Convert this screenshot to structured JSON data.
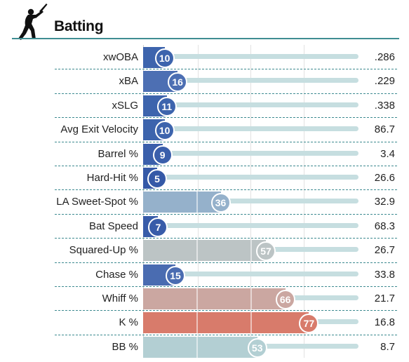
{
  "header": {
    "title": "Batting",
    "icon": "baseball-batter-icon"
  },
  "colors": {
    "rule": "#3f8d92",
    "track": "#c6dee0"
  },
  "rows": [
    {
      "label": "xwOBA",
      "percentile": 10,
      "value": ".286",
      "color": "#3d64ad"
    },
    {
      "label": "xBA",
      "percentile": 16,
      "value": ".229",
      "color": "#4d6fb3"
    },
    {
      "label": "xSLG",
      "percentile": 11,
      "value": ".338",
      "color": "#3d64ad"
    },
    {
      "label": "Avg Exit Velocity",
      "percentile": 10,
      "value": "86.7",
      "color": "#3d64ad"
    },
    {
      "label": "Barrel %",
      "percentile": 9,
      "value": "3.4",
      "color": "#3a5fab"
    },
    {
      "label": "Hard-Hit %",
      "percentile": 5,
      "value": "26.6",
      "color": "#3559a7"
    },
    {
      "label": "LA Sweet-Spot %",
      "percentile": 36,
      "value": "32.9",
      "color": "#95b1cb"
    },
    {
      "label": "Bat Speed",
      "percentile": 7,
      "value": "68.3",
      "color": "#385ca9"
    },
    {
      "label": "Squared-Up %",
      "percentile": 57,
      "value": "26.7",
      "color": "#bcc4c5"
    },
    {
      "label": "Chase %",
      "percentile": 15,
      "value": "33.8",
      "color": "#4a6cb1"
    },
    {
      "label": "Whiff %",
      "percentile": 66,
      "value": "21.7",
      "color": "#cba7a1"
    },
    {
      "label": "K %",
      "percentile": 77,
      "value": "16.8",
      "color": "#d87b6b"
    },
    {
      "label": "BB %",
      "percentile": 53,
      "value": "8.7",
      "color": "#b3cfd3"
    }
  ]
}
